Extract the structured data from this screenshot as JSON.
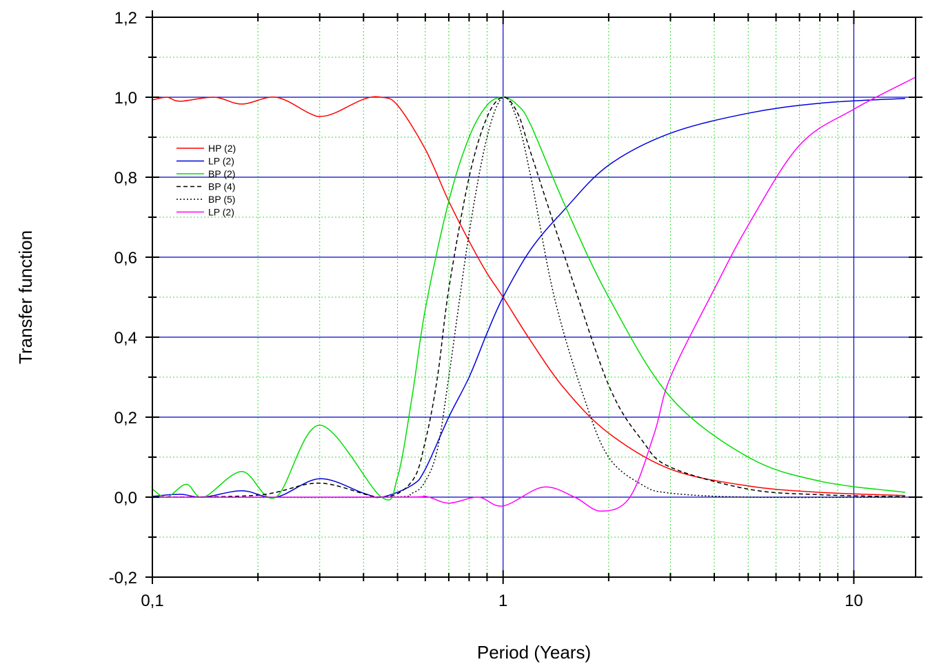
{
  "chart_data": {
    "type": "line",
    "title": "",
    "xlabel": "Period (Years)",
    "ylabel": "Transfer function",
    "x_scale": "log",
    "xlim": [
      0.1,
      15
    ],
    "ylim": [
      -0.2,
      1.2
    ],
    "x_ticks": [
      {
        "value": 0.1,
        "label": "0,1"
      },
      {
        "value": 1,
        "label": "1"
      },
      {
        "value": 10,
        "label": "10"
      }
    ],
    "y_ticks": [
      {
        "value": -0.2,
        "label": "-0,2"
      },
      {
        "value": 0.0,
        "label": "0,0"
      },
      {
        "value": 0.2,
        "label": "0,2"
      },
      {
        "value": 0.4,
        "label": "0,4"
      },
      {
        "value": 0.6,
        "label": "0,6"
      },
      {
        "value": 0.8,
        "label": "0,8"
      },
      {
        "value": 1.0,
        "label": "1,0"
      },
      {
        "value": 1.2,
        "label": "1,2"
      }
    ],
    "grid": {
      "major": true,
      "minor": true,
      "major_color": "#0000cc",
      "minor_color": "#33dd33"
    },
    "legend_position": "upper-left",
    "series": [
      {
        "name": "HP (2)",
        "color": "#ff0000",
        "dash": "solid",
        "points": [
          [
            0.1,
            0.993
          ],
          [
            0.11,
            1.0
          ],
          [
            0.12,
            0.99
          ],
          [
            0.15,
            1.0
          ],
          [
            0.18,
            0.983
          ],
          [
            0.225,
            1.0
          ],
          [
            0.28,
            0.96
          ],
          [
            0.3,
            0.952
          ],
          [
            0.33,
            0.96
          ],
          [
            0.4,
            0.995
          ],
          [
            0.45,
            1.0
          ],
          [
            0.5,
            0.98
          ],
          [
            0.6,
            0.87
          ],
          [
            0.7,
            0.74
          ],
          [
            0.8,
            0.64
          ],
          [
            0.9,
            0.56
          ],
          [
            1.0,
            0.5
          ],
          [
            1.2,
            0.39
          ],
          [
            1.5,
            0.27
          ],
          [
            2.0,
            0.16
          ],
          [
            3.0,
            0.07
          ],
          [
            5.0,
            0.028
          ],
          [
            8.0,
            0.012
          ],
          [
            14.0,
            0.004
          ]
        ]
      },
      {
        "name": "LP (2)",
        "color": "#0000dd",
        "dash": "solid",
        "points": [
          [
            0.1,
            0.002
          ],
          [
            0.12,
            0.007
          ],
          [
            0.14,
            0.0
          ],
          [
            0.18,
            0.016
          ],
          [
            0.225,
            0.0
          ],
          [
            0.3,
            0.046
          ],
          [
            0.4,
            0.01
          ],
          [
            0.45,
            0.0
          ],
          [
            0.55,
            0.03
          ],
          [
            0.6,
            0.07
          ],
          [
            0.7,
            0.2
          ],
          [
            0.8,
            0.3
          ],
          [
            0.9,
            0.41
          ],
          [
            1.0,
            0.5
          ],
          [
            1.2,
            0.62
          ],
          [
            1.5,
            0.72
          ],
          [
            2.0,
            0.83
          ],
          [
            3.0,
            0.91
          ],
          [
            5.0,
            0.96
          ],
          [
            8.0,
            0.985
          ],
          [
            14.0,
            0.997
          ]
        ]
      },
      {
        "name": "BP (2)",
        "color": "#00dd00",
        "dash": "solid",
        "points": [
          [
            0.1,
            0.02
          ],
          [
            0.11,
            0.0
          ],
          [
            0.125,
            0.032
          ],
          [
            0.14,
            0.0
          ],
          [
            0.18,
            0.064
          ],
          [
            0.225,
            0.0
          ],
          [
            0.3,
            0.18
          ],
          [
            0.45,
            0.0
          ],
          [
            0.5,
            0.05
          ],
          [
            0.55,
            0.25
          ],
          [
            0.6,
            0.47
          ],
          [
            0.7,
            0.74
          ],
          [
            0.8,
            0.9
          ],
          [
            0.9,
            0.98
          ],
          [
            1.0,
            1.0
          ],
          [
            1.1,
            0.98
          ],
          [
            1.2,
            0.93
          ],
          [
            1.5,
            0.73
          ],
          [
            2.0,
            0.5
          ],
          [
            3.0,
            0.25
          ],
          [
            5.0,
            0.1
          ],
          [
            8.0,
            0.04
          ],
          [
            14.0,
            0.012
          ]
        ]
      },
      {
        "name": "BP (4)",
        "color": "#000000",
        "dash": "6,4",
        "points": [
          [
            0.1,
            0.0
          ],
          [
            0.2,
            0.005
          ],
          [
            0.3,
            0.035
          ],
          [
            0.45,
            0.0
          ],
          [
            0.55,
            0.04
          ],
          [
            0.6,
            0.14
          ],
          [
            0.65,
            0.3
          ],
          [
            0.7,
            0.52
          ],
          [
            0.8,
            0.8
          ],
          [
            0.9,
            0.95
          ],
          [
            1.0,
            1.0
          ],
          [
            1.1,
            0.96
          ],
          [
            1.2,
            0.86
          ],
          [
            1.5,
            0.6
          ],
          [
            2.0,
            0.28
          ],
          [
            2.5,
            0.14
          ],
          [
            3.0,
            0.075
          ],
          [
            5.0,
            0.02
          ],
          [
            8.0,
            0.006
          ],
          [
            14.0,
            0.001
          ]
        ]
      },
      {
        "name": "BP (5)",
        "color": "#000000",
        "dash": "2,3",
        "points": [
          [
            0.1,
            0.0
          ],
          [
            0.45,
            0.0
          ],
          [
            0.55,
            0.01
          ],
          [
            0.6,
            0.04
          ],
          [
            0.65,
            0.12
          ],
          [
            0.7,
            0.3
          ],
          [
            0.8,
            0.66
          ],
          [
            0.9,
            0.9
          ],
          [
            1.0,
            1.0
          ],
          [
            1.1,
            0.94
          ],
          [
            1.2,
            0.8
          ],
          [
            1.4,
            0.5
          ],
          [
            1.7,
            0.25
          ],
          [
            2.0,
            0.1
          ],
          [
            2.5,
            0.03
          ],
          [
            3.0,
            0.01
          ],
          [
            5.0,
            0.0
          ],
          [
            14.0,
            0.0
          ]
        ]
      },
      {
        "name": "LP (2)",
        "color": "#ff00ff",
        "dash": "solid",
        "points": [
          [
            0.1,
            0.0
          ],
          [
            0.5,
            0.0
          ],
          [
            0.6,
            0.002
          ],
          [
            0.7,
            -0.015
          ],
          [
            0.85,
            0.0
          ],
          [
            1.0,
            -0.022
          ],
          [
            1.3,
            0.025
          ],
          [
            1.6,
            0.0
          ],
          [
            1.9,
            -0.035
          ],
          [
            2.3,
            0.0
          ],
          [
            2.7,
            0.16
          ],
          [
            3.0,
            0.3
          ],
          [
            4.0,
            0.52
          ],
          [
            5.0,
            0.68
          ],
          [
            7.0,
            0.88
          ],
          [
            10.0,
            0.97
          ],
          [
            15.0,
            1.05
          ]
        ]
      }
    ]
  }
}
